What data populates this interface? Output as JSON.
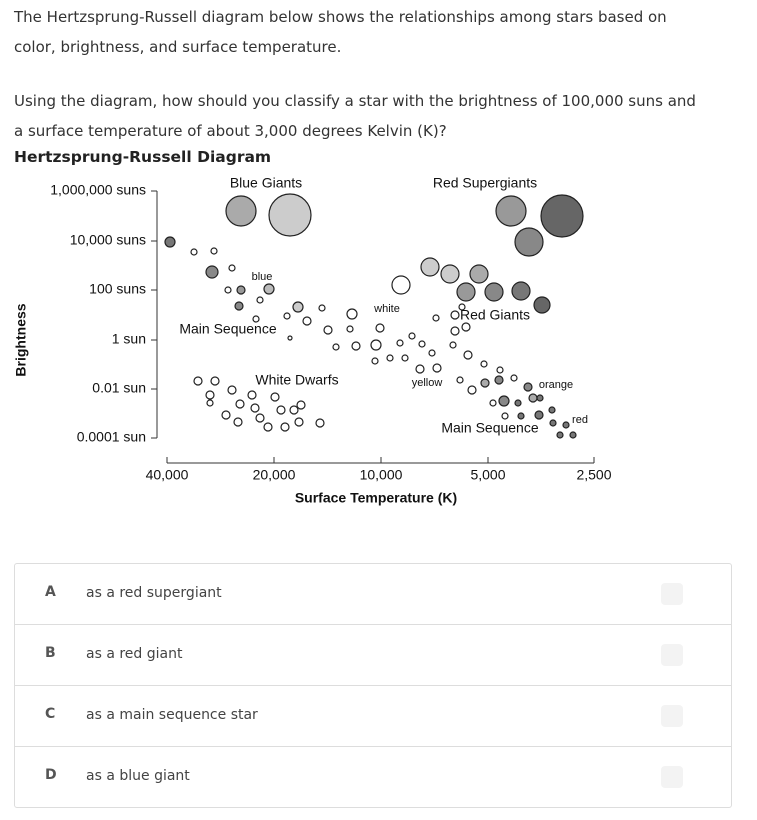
{
  "question": {
    "intro": "The Hertzsprung-Russell diagram below shows the relationships among stars based on color, brightness, and surface temperature.",
    "prompt": "Using the diagram, how should you classify a star with the brightness of 100,000 suns and a surface temperature of about 3,000 degrees Kelvin (K)?"
  },
  "figure": {
    "title": "Hertzsprung-Russell Diagram",
    "y_axis_label": "Brightness",
    "x_axis_label": "Surface Temperature (K)",
    "y_ticks": [
      "1,000,000 suns",
      "10,000 suns",
      "100 suns",
      "1 sun",
      "0.01 sun",
      "0.0001 sun"
    ],
    "x_ticks": [
      "40,000",
      "20,000",
      "10,000",
      "5,000",
      "2,500"
    ],
    "regions": [
      "Blue Giants",
      "Red Supergiants",
      "blue",
      "white",
      "Main Sequence",
      "Red Giants",
      "White Dwarfs",
      "yellow",
      "orange",
      "red",
      "Main Sequence"
    ]
  },
  "options": [
    {
      "letter": "A",
      "text": "as a red supergiant"
    },
    {
      "letter": "B",
      "text": "as a red giant"
    },
    {
      "letter": "C",
      "text": "as a main sequence star"
    },
    {
      "letter": "D",
      "text": "as a blue giant"
    }
  ]
}
